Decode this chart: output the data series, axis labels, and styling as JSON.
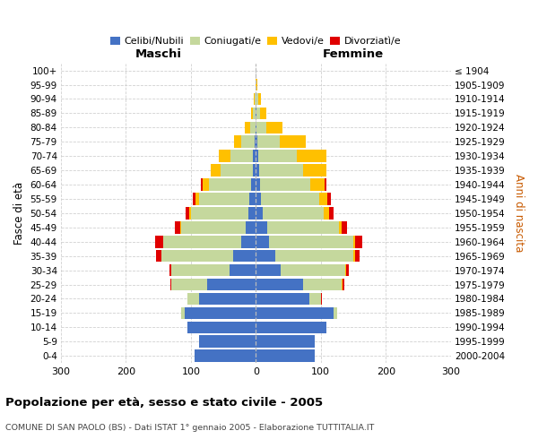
{
  "age_groups": [
    "0-4",
    "5-9",
    "10-14",
    "15-19",
    "20-24",
    "25-29",
    "30-34",
    "35-39",
    "40-44",
    "45-49",
    "50-54",
    "55-59",
    "60-64",
    "65-69",
    "70-74",
    "75-79",
    "80-84",
    "85-89",
    "90-94",
    "95-99",
    "100+"
  ],
  "birth_years": [
    "2000-2004",
    "1995-1999",
    "1990-1994",
    "1985-1989",
    "1980-1984",
    "1975-1979",
    "1970-1974",
    "1965-1969",
    "1960-1964",
    "1955-1959",
    "1950-1954",
    "1945-1949",
    "1940-1944",
    "1935-1939",
    "1930-1934",
    "1925-1929",
    "1920-1924",
    "1915-1919",
    "1910-1914",
    "1905-1909",
    "≤ 1904"
  ],
  "male_celibi": [
    95,
    88,
    105,
    110,
    88,
    75,
    40,
    35,
    22,
    15,
    12,
    10,
    7,
    5,
    4,
    2,
    1,
    1,
    0,
    0,
    0
  ],
  "male_coniugati": [
    0,
    0,
    0,
    5,
    18,
    55,
    90,
    110,
    120,
    100,
    88,
    78,
    65,
    50,
    35,
    20,
    8,
    4,
    2,
    0,
    0
  ],
  "male_vedovi": [
    0,
    0,
    0,
    0,
    0,
    0,
    0,
    1,
    1,
    2,
    3,
    5,
    10,
    15,
    18,
    12,
    8,
    3,
    1,
    0,
    0
  ],
  "male_divorziati": [
    0,
    0,
    0,
    0,
    0,
    2,
    3,
    8,
    12,
    8,
    5,
    4,
    2,
    0,
    0,
    0,
    0,
    0,
    0,
    0,
    0
  ],
  "female_celibi": [
    90,
    90,
    108,
    120,
    82,
    72,
    38,
    30,
    20,
    18,
    10,
    8,
    6,
    5,
    3,
    2,
    1,
    1,
    0,
    0,
    0
  ],
  "female_coniugati": [
    0,
    0,
    0,
    5,
    18,
    60,
    100,
    120,
    130,
    110,
    95,
    90,
    78,
    68,
    60,
    35,
    15,
    5,
    3,
    0,
    0
  ],
  "female_vedovi": [
    0,
    0,
    0,
    0,
    0,
    1,
    1,
    2,
    2,
    4,
    8,
    12,
    22,
    35,
    45,
    40,
    25,
    10,
    5,
    2,
    0
  ],
  "female_divorziati": [
    0,
    0,
    0,
    0,
    1,
    3,
    4,
    8,
    12,
    8,
    6,
    5,
    2,
    0,
    0,
    0,
    0,
    0,
    0,
    0,
    0
  ],
  "color_celibi": "#4472c4",
  "color_coniugati": "#c5d89d",
  "color_vedovi": "#ffc000",
  "color_divorziati": "#e00000",
  "title": "Popolazione per età, sesso e stato civile - 2005",
  "subtitle": "COMUNE DI SAN PAOLO (BS) - Dati ISTAT 1° gennaio 2005 - Elaborazione TUTTITALIA.IT",
  "xlabel_left": "Maschi",
  "xlabel_right": "Femmine",
  "ylabel_left": "Fasce di età",
  "ylabel_right": "Anni di nascita",
  "xlim": 300,
  "bg_color": "#ffffff",
  "grid_color": "#cccccc"
}
